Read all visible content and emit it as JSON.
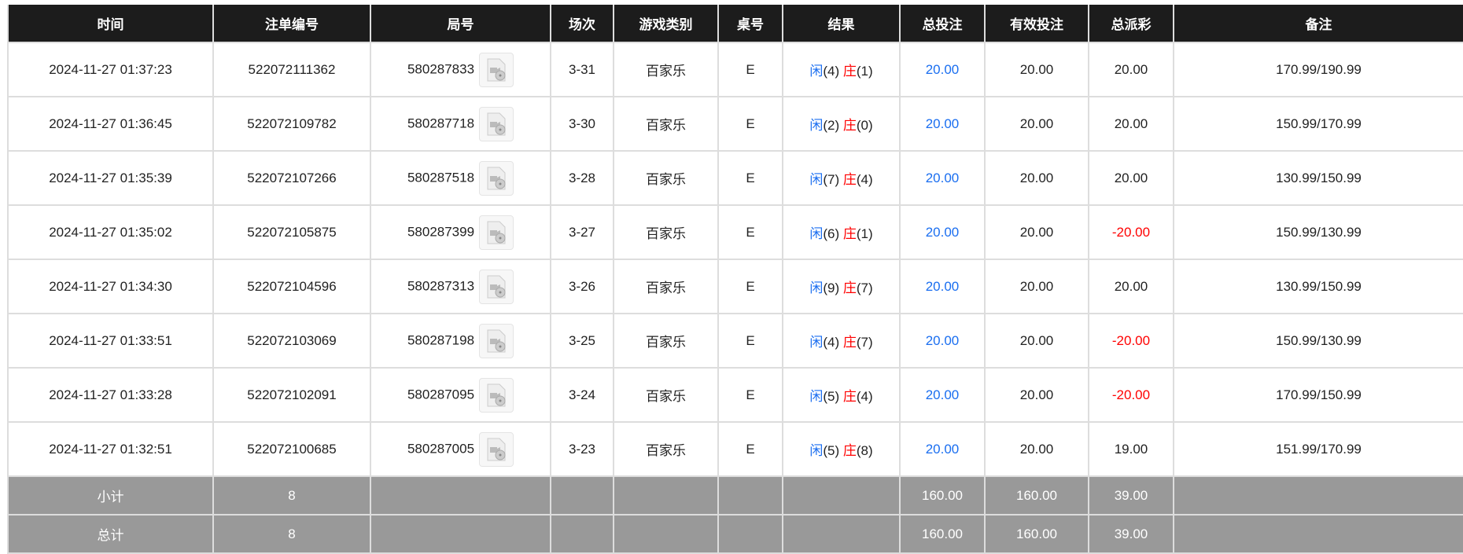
{
  "headers": [
    "时间",
    "注单编号",
    "局号",
    "场次",
    "游戏类别",
    "桌号",
    "结果",
    "总投注",
    "有效投注",
    "总派彩",
    "备注"
  ],
  "colors": {
    "player": "#1a6ef0",
    "banker": "#ff0000",
    "header_bg": "#1c1c1c",
    "summary_bg": "#999999"
  },
  "rows": [
    {
      "time": "2024-11-27 01:37:23",
      "bet_id": "522072111362",
      "round": "580287833",
      "shoe": "3-31",
      "game": "百家乐",
      "table": "E",
      "player_label": "闲",
      "player": "(4)",
      "banker_label": "庄",
      "banker": "(1)",
      "total_bet": "20.00",
      "valid_bet": "20.00",
      "payout": "20.00",
      "payout_negative": false,
      "remark": "170.99/190.99"
    },
    {
      "time": "2024-11-27 01:36:45",
      "bet_id": "522072109782",
      "round": "580287718",
      "shoe": "3-30",
      "game": "百家乐",
      "table": "E",
      "player_label": "闲",
      "player": "(2)",
      "banker_label": "庄",
      "banker": "(0)",
      "total_bet": "20.00",
      "valid_bet": "20.00",
      "payout": "20.00",
      "payout_negative": false,
      "remark": "150.99/170.99"
    },
    {
      "time": "2024-11-27 01:35:39",
      "bet_id": "522072107266",
      "round": "580287518",
      "shoe": "3-28",
      "game": "百家乐",
      "table": "E",
      "player_label": "闲",
      "player": "(7)",
      "banker_label": "庄",
      "banker": "(4)",
      "total_bet": "20.00",
      "valid_bet": "20.00",
      "payout": "20.00",
      "payout_negative": false,
      "remark": "130.99/150.99"
    },
    {
      "time": "2024-11-27 01:35:02",
      "bet_id": "522072105875",
      "round": "580287399",
      "shoe": "3-27",
      "game": "百家乐",
      "table": "E",
      "player_label": "闲",
      "player": "(6)",
      "banker_label": "庄",
      "banker": "(1)",
      "total_bet": "20.00",
      "valid_bet": "20.00",
      "payout": "-20.00",
      "payout_negative": true,
      "remark": "150.99/130.99"
    },
    {
      "time": "2024-11-27 01:34:30",
      "bet_id": "522072104596",
      "round": "580287313",
      "shoe": "3-26",
      "game": "百家乐",
      "table": "E",
      "player_label": "闲",
      "player": "(9)",
      "banker_label": "庄",
      "banker": "(7)",
      "total_bet": "20.00",
      "valid_bet": "20.00",
      "payout": "20.00",
      "payout_negative": false,
      "remark": "130.99/150.99"
    },
    {
      "time": "2024-11-27 01:33:51",
      "bet_id": "522072103069",
      "round": "580287198",
      "shoe": "3-25",
      "game": "百家乐",
      "table": "E",
      "player_label": "闲",
      "player": "(4)",
      "banker_label": "庄",
      "banker": "(7)",
      "total_bet": "20.00",
      "valid_bet": "20.00",
      "payout": "-20.00",
      "payout_negative": true,
      "remark": "150.99/130.99"
    },
    {
      "time": "2024-11-27 01:33:28",
      "bet_id": "522072102091",
      "round": "580287095",
      "shoe": "3-24",
      "game": "百家乐",
      "table": "E",
      "player_label": "闲",
      "player": "(5)",
      "banker_label": "庄",
      "banker": "(4)",
      "total_bet": "20.00",
      "valid_bet": "20.00",
      "payout": "-20.00",
      "payout_negative": true,
      "remark": "170.99/150.99"
    },
    {
      "time": "2024-11-27 01:32:51",
      "bet_id": "522072100685",
      "round": "580287005",
      "shoe": "3-23",
      "game": "百家乐",
      "table": "E",
      "player_label": "闲",
      "player": "(5)",
      "banker_label": "庄",
      "banker": "(8)",
      "total_bet": "20.00",
      "valid_bet": "20.00",
      "payout": "19.00",
      "payout_negative": false,
      "remark": "151.99/170.99"
    }
  ],
  "summary": [
    {
      "label": "小计",
      "count": "8",
      "total_bet": "160.00",
      "valid_bet": "160.00",
      "payout": "39.00"
    },
    {
      "label": "总计",
      "count": "8",
      "total_bet": "160.00",
      "valid_bet": "160.00",
      "payout": "39.00"
    }
  ],
  "icons": {
    "replay": "video-file-icon"
  }
}
